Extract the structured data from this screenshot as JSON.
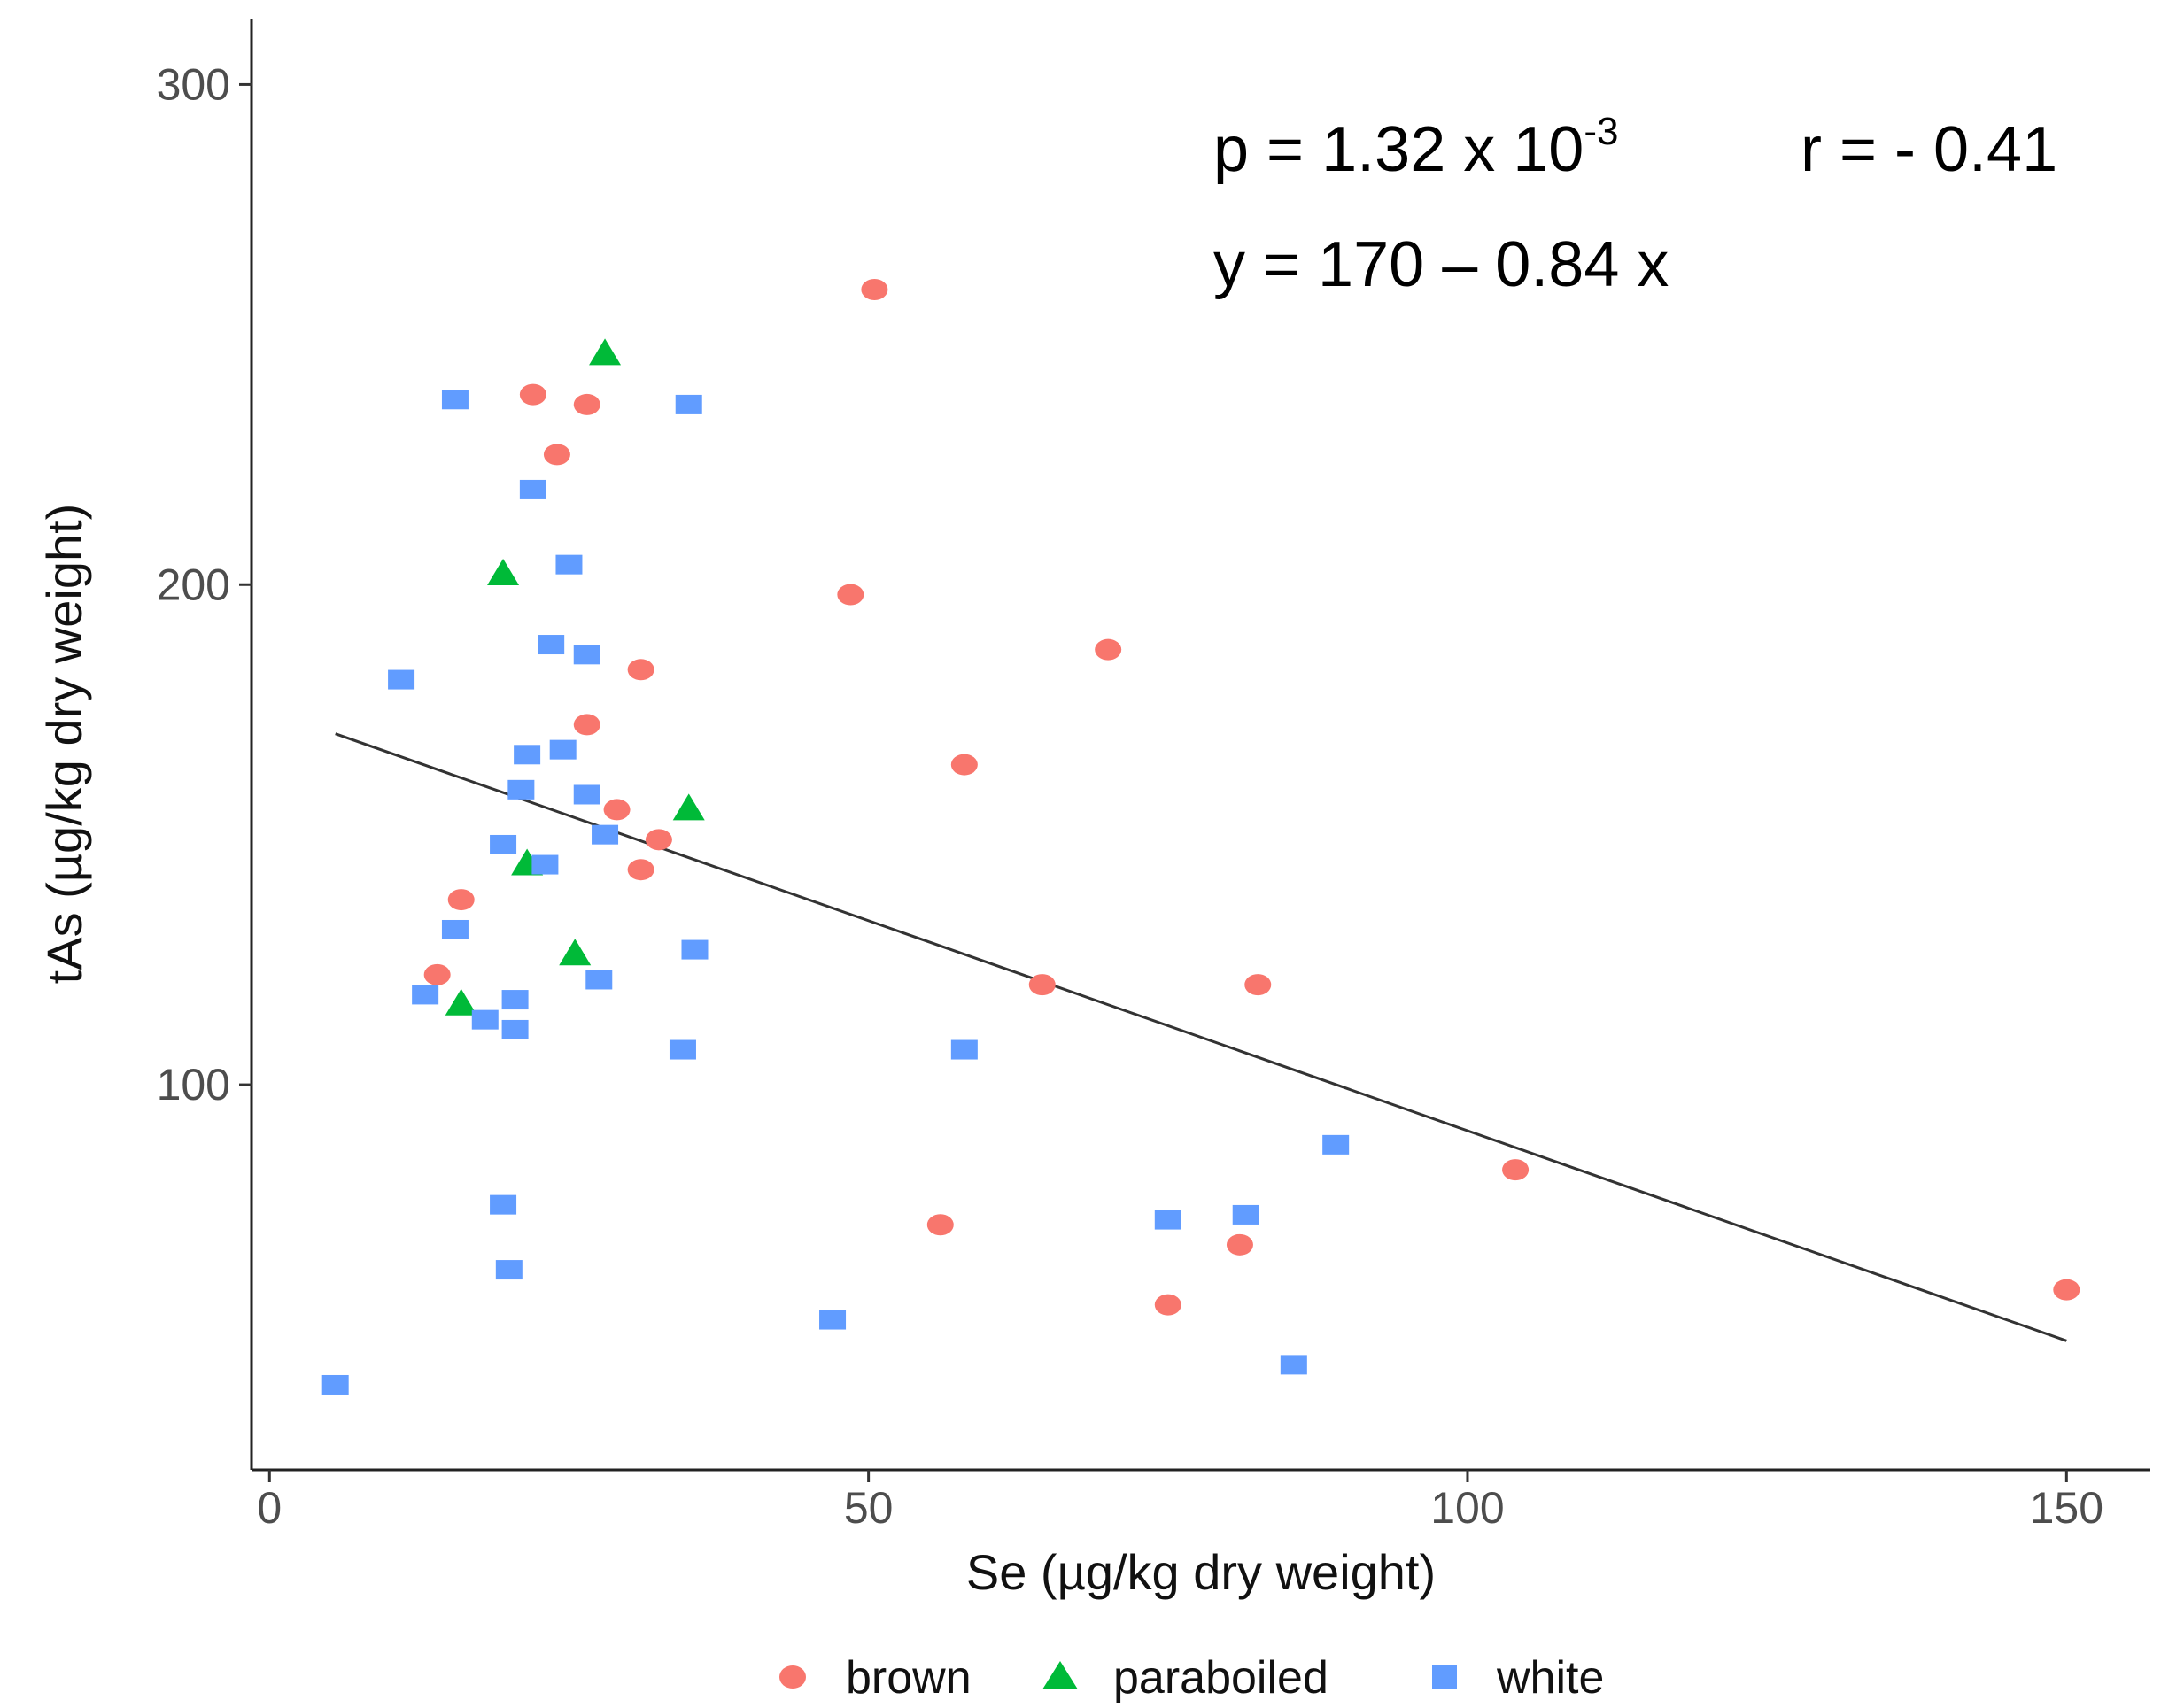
{
  "chart_data": {
    "type": "scatter",
    "title": "",
    "xlabel": "Se (µg/kg dry weight)",
    "ylabel": "tAs (µg/kg dry weight)",
    "xlim": [
      -1.5,
      157
    ],
    "ylim": [
      23,
      313
    ],
    "x_ticks": [
      0,
      50,
      100,
      150
    ],
    "x_tick_labels": [
      "0",
      "50",
      "100",
      "150"
    ],
    "y_ticks": [
      100,
      200,
      300
    ],
    "y_tick_labels": [
      "100",
      "200",
      "300"
    ],
    "grid": false,
    "legend_position": "bottom",
    "series": [
      {
        "name": "brown",
        "marker": "circle",
        "color": "#F8766D",
        "points": [
          [
            50.5,
            259
          ],
          [
            22,
            238
          ],
          [
            26.5,
            236
          ],
          [
            24,
            226
          ],
          [
            48.5,
            198
          ],
          [
            70,
            187
          ],
          [
            31,
            183
          ],
          [
            26.5,
            172
          ],
          [
            58,
            164
          ],
          [
            29,
            155
          ],
          [
            32.5,
            149
          ],
          [
            31,
            143
          ],
          [
            16,
            137
          ],
          [
            14,
            122
          ],
          [
            64.5,
            120
          ],
          [
            82.5,
            120
          ],
          [
            104,
            83
          ],
          [
            56,
            72
          ],
          [
            81,
            68
          ],
          [
            75,
            56
          ],
          [
            150,
            59
          ]
        ]
      },
      {
        "name": "paraboiled",
        "marker": "triangle",
        "color": "#00BA38",
        "points": [
          [
            28,
            246
          ],
          [
            19.5,
            202
          ],
          [
            35,
            155
          ],
          [
            21.5,
            144
          ],
          [
            25.5,
            126
          ],
          [
            16,
            116
          ]
        ]
      },
      {
        "name": "white",
        "marker": "square",
        "color": "#619CFF",
        "points": [
          [
            15.5,
            237
          ],
          [
            35,
            236
          ],
          [
            22,
            219
          ],
          [
            25,
            204
          ],
          [
            23.5,
            188
          ],
          [
            26.5,
            186
          ],
          [
            11,
            181
          ],
          [
            21.5,
            166
          ],
          [
            24.5,
            167
          ],
          [
            21,
            159
          ],
          [
            26.5,
            158
          ],
          [
            28,
            150
          ],
          [
            19.5,
            148
          ],
          [
            23,
            144
          ],
          [
            15.5,
            131
          ],
          [
            35.5,
            127
          ],
          [
            27.5,
            121
          ],
          [
            13,
            118
          ],
          [
            20.5,
            117
          ],
          [
            18,
            113
          ],
          [
            20.5,
            111
          ],
          [
            34.5,
            107
          ],
          [
            58,
            107
          ],
          [
            89,
            88
          ],
          [
            19.5,
            76
          ],
          [
            81.5,
            74
          ],
          [
            75,
            73
          ],
          [
            20,
            63
          ],
          [
            47,
            53
          ],
          [
            85.5,
            44
          ],
          [
            5.5,
            40
          ]
        ]
      }
    ],
    "fit_line": {
      "intercept": 174.8,
      "slope": -0.84,
      "x_range": [
        5.5,
        150
      ]
    },
    "annotations": {
      "p_prefix": "p = 1.32 x 10",
      "p_exponent": "-3",
      "r_text": "r = - 0.41",
      "equation": "y = 170 – 0.84 x"
    }
  }
}
